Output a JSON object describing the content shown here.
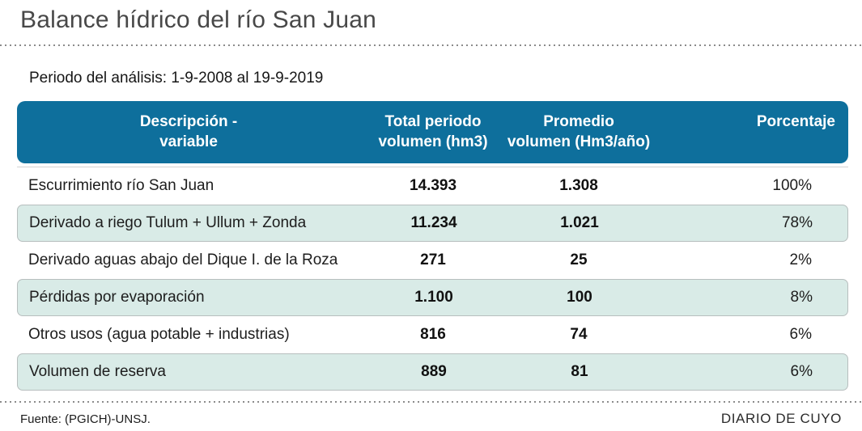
{
  "title": "Balance hídrico del río San Juan",
  "period_note": "Periodo del análisis: 1-9-2008 al 19-9-2019",
  "colors": {
    "header_bg": "#0e6f9c",
    "header_text": "#ffffff",
    "row_alt_bg": "#d9ebe7",
    "row_alt_border": "#b7bebe",
    "title_text": "#484848",
    "body_text": "#1d1d1d"
  },
  "table": {
    "headers": {
      "col1": "Descripción -\nvariable",
      "col2": "Total periodo\nvolumen (hm3)",
      "col3": "Promedio\nvolumen (Hm3/año)",
      "col4": "Porcentaje"
    },
    "rows": [
      {
        "desc": "Escurrimiento río San Juan",
        "total": "14.393",
        "avg": "1.308",
        "pct": "100%"
      },
      {
        "desc": "Derivado a riego Tulum + Ullum + Zonda",
        "total": "11.234",
        "avg": "1.021",
        "pct": "78%"
      },
      {
        "desc": "Derivado aguas abajo del Dique I. de la Roza",
        "total": "271",
        "avg": "25",
        "pct": "2%"
      },
      {
        "desc": "Pérdidas por evaporación",
        "total": "1.100",
        "avg": "100",
        "pct": "8%"
      },
      {
        "desc": "Otros usos (agua potable + industrias)",
        "total": "816",
        "avg": "74",
        "pct": "6%"
      },
      {
        "desc": "Volumen de reserva",
        "total": "889",
        "avg": "81",
        "pct": "6%"
      }
    ]
  },
  "footer": {
    "source": "Fuente: (PGICH)-UNSJ.",
    "brand": "DIARIO DE CUYO"
  },
  "chart_data": {
    "type": "table",
    "title": "Balance hídrico del río San Juan",
    "subtitle": "Periodo del análisis: 1-9-2008 al 19-9-2019",
    "columns": [
      "Descripción - variable",
      "Total periodo volumen (hm3)",
      "Promedio volumen (Hm3/año)",
      "Porcentaje"
    ],
    "rows": [
      [
        "Escurrimiento río San Juan",
        14393,
        1308,
        "100%"
      ],
      [
        "Derivado a riego Tulum + Ullum + Zonda",
        11234,
        1021,
        "78%"
      ],
      [
        "Derivado aguas abajo del Dique I. de la Roza",
        271,
        25,
        "2%"
      ],
      [
        "Pérdidas por evaporación",
        1100,
        100,
        "8%"
      ],
      [
        "Otros usos (agua potable + industrias)",
        816,
        74,
        "6%"
      ],
      [
        "Volumen de reserva",
        889,
        81,
        "6%"
      ]
    ],
    "source": "Fuente: (PGICH)-UNSJ."
  }
}
